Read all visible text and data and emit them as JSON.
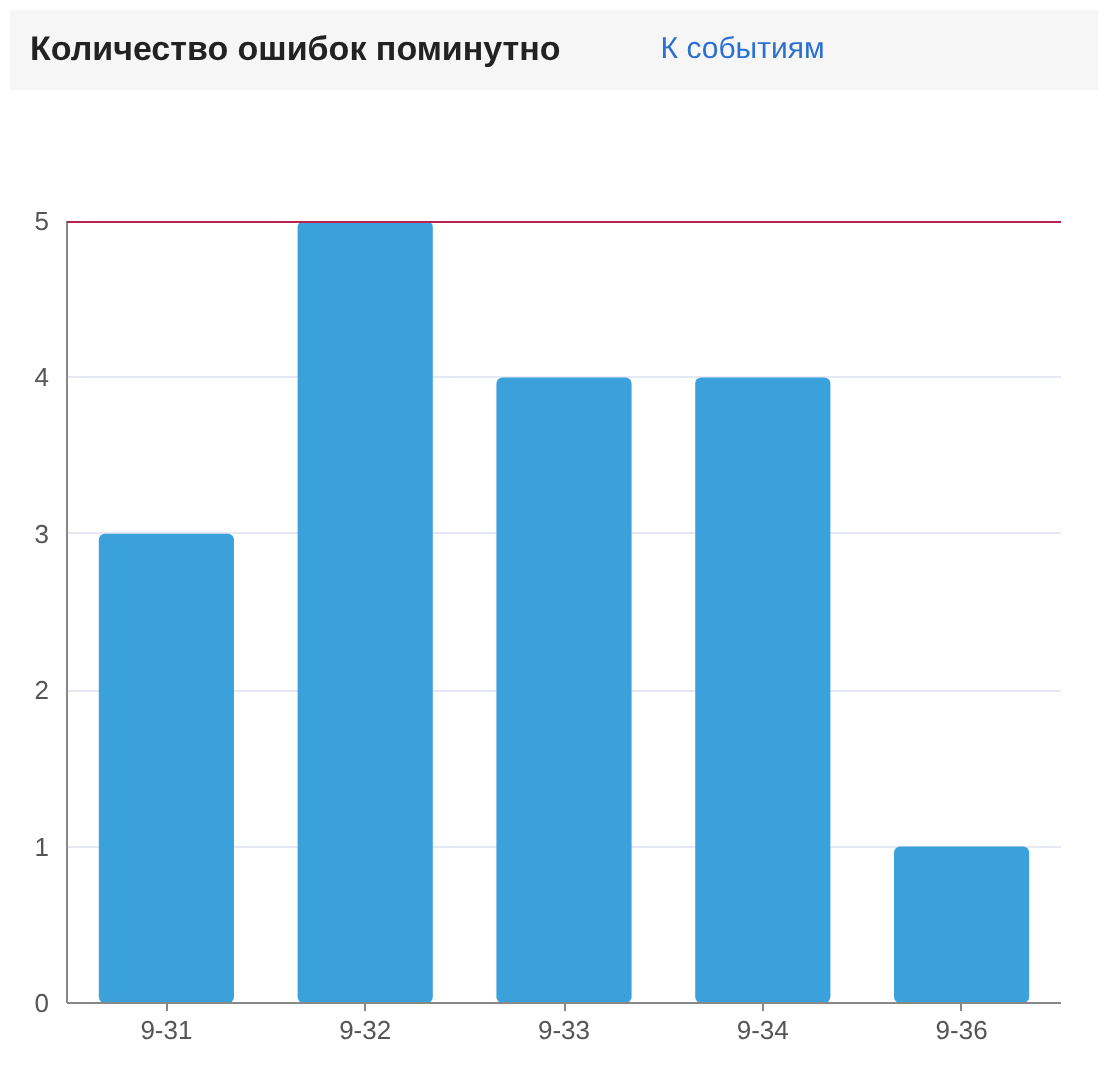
{
  "chart_data": {
    "type": "bar",
    "title": "Количество ошибок поминутно",
    "annotations": [
      "К событиям"
    ],
    "categories": [
      "9-31",
      "9-32",
      "9-33",
      "9-34",
      "9-36"
    ],
    "values": [
      3,
      5,
      4,
      4,
      1
    ],
    "color": "#3aa1da",
    "ylim": [
      0,
      5
    ],
    "yticks": [
      0,
      1,
      2,
      3,
      4,
      5
    ],
    "grid": "y",
    "ref_lines": [
      {
        "axis": "y",
        "value": 5,
        "color": "#b8234f"
      }
    ]
  }
}
